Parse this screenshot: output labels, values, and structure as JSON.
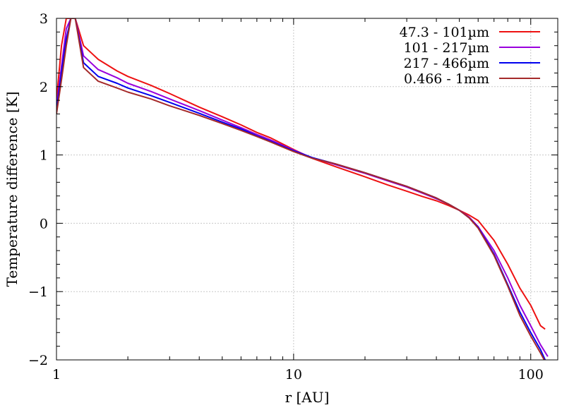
{
  "chart_data": {
    "type": "line",
    "xlabel": "r [AU]",
    "ylabel": "Temperature difference [K]",
    "xscale": "log",
    "xlim": [
      1,
      130
    ],
    "ylim": [
      -2,
      3
    ],
    "xticks": [
      1,
      10,
      100
    ],
    "xtick_labels": [
      "1",
      "10",
      "100"
    ],
    "yticks": [
      -2,
      -1,
      0,
      1,
      2,
      3
    ],
    "ytick_labels": [
      "−2",
      "−1",
      "0",
      "1",
      "2",
      "3"
    ],
    "grid": true,
    "legend_position": "top-right",
    "series": [
      {
        "name": "47.3 - 101µm",
        "color": "#ee1111",
        "x": [
          1.0,
          1.05,
          1.1,
          1.15,
          1.2,
          1.3,
          1.5,
          1.8,
          2,
          2.5,
          3,
          4,
          5,
          6,
          7,
          8,
          10,
          12,
          15,
          20,
          25,
          30,
          35,
          40,
          45,
          50,
          55,
          60,
          70,
          80,
          90,
          100,
          110,
          115
        ],
        "y": [
          1.8,
          2.6,
          3.0,
          3.0,
          3.0,
          2.6,
          2.4,
          2.23,
          2.15,
          2.02,
          1.9,
          1.7,
          1.56,
          1.44,
          1.33,
          1.25,
          1.08,
          0.95,
          0.83,
          0.68,
          0.56,
          0.47,
          0.39,
          0.33,
          0.26,
          0.19,
          0.12,
          0.04,
          -0.25,
          -0.6,
          -0.95,
          -1.2,
          -1.5,
          -1.55
        ]
      },
      {
        "name": "101 - 217µm",
        "color": "#9900dd",
        "x": [
          1.0,
          1.05,
          1.1,
          1.15,
          1.2,
          1.3,
          1.5,
          1.8,
          2,
          2.5,
          3,
          4,
          5,
          6,
          7,
          8,
          10,
          12,
          15,
          20,
          25,
          30,
          35,
          40,
          45,
          50,
          55,
          60,
          70,
          80,
          90,
          100,
          110,
          118
        ],
        "y": [
          1.7,
          2.3,
          2.85,
          3.0,
          3.0,
          2.45,
          2.25,
          2.13,
          2.05,
          1.93,
          1.82,
          1.65,
          1.51,
          1.4,
          1.3,
          1.22,
          1.07,
          0.96,
          0.86,
          0.73,
          0.62,
          0.53,
          0.44,
          0.36,
          0.28,
          0.19,
          0.09,
          -0.05,
          -0.4,
          -0.8,
          -1.2,
          -1.5,
          -1.78,
          -1.95
        ]
      },
      {
        "name": "217 - 466µm",
        "color": "#0000ee",
        "x": [
          1.0,
          1.05,
          1.1,
          1.15,
          1.2,
          1.3,
          1.5,
          1.8,
          2,
          2.5,
          3,
          4,
          5,
          6,
          7,
          8,
          10,
          12,
          15,
          20,
          25,
          30,
          35,
          40,
          45,
          50,
          55,
          60,
          70,
          80,
          90,
          100,
          110,
          115
        ],
        "y": [
          1.65,
          2.2,
          2.7,
          3.0,
          3.0,
          2.35,
          2.15,
          2.05,
          1.98,
          1.87,
          1.77,
          1.61,
          1.48,
          1.38,
          1.28,
          1.2,
          1.06,
          0.96,
          0.87,
          0.74,
          0.63,
          0.54,
          0.45,
          0.37,
          0.28,
          0.19,
          0.08,
          -0.06,
          -0.45,
          -0.9,
          -1.3,
          -1.6,
          -1.85,
          -2.0
        ]
      },
      {
        "name": "0.466 - 1mm",
        "color": "#a52a2a",
        "x": [
          1.0,
          1.05,
          1.1,
          1.15,
          1.2,
          1.3,
          1.5,
          1.8,
          2,
          2.5,
          3,
          4,
          5,
          6,
          7,
          8,
          10,
          12,
          15,
          20,
          25,
          30,
          35,
          40,
          45,
          50,
          55,
          60,
          70,
          80,
          90,
          100,
          110,
          114
        ],
        "y": [
          1.6,
          2.1,
          2.6,
          3.0,
          3.0,
          2.28,
          2.08,
          1.98,
          1.92,
          1.82,
          1.72,
          1.58,
          1.46,
          1.36,
          1.27,
          1.19,
          1.05,
          0.95,
          0.87,
          0.74,
          0.63,
          0.54,
          0.45,
          0.37,
          0.28,
          0.19,
          0.08,
          -0.07,
          -0.47,
          -0.92,
          -1.35,
          -1.65,
          -1.9,
          -2.0
        ]
      }
    ]
  }
}
